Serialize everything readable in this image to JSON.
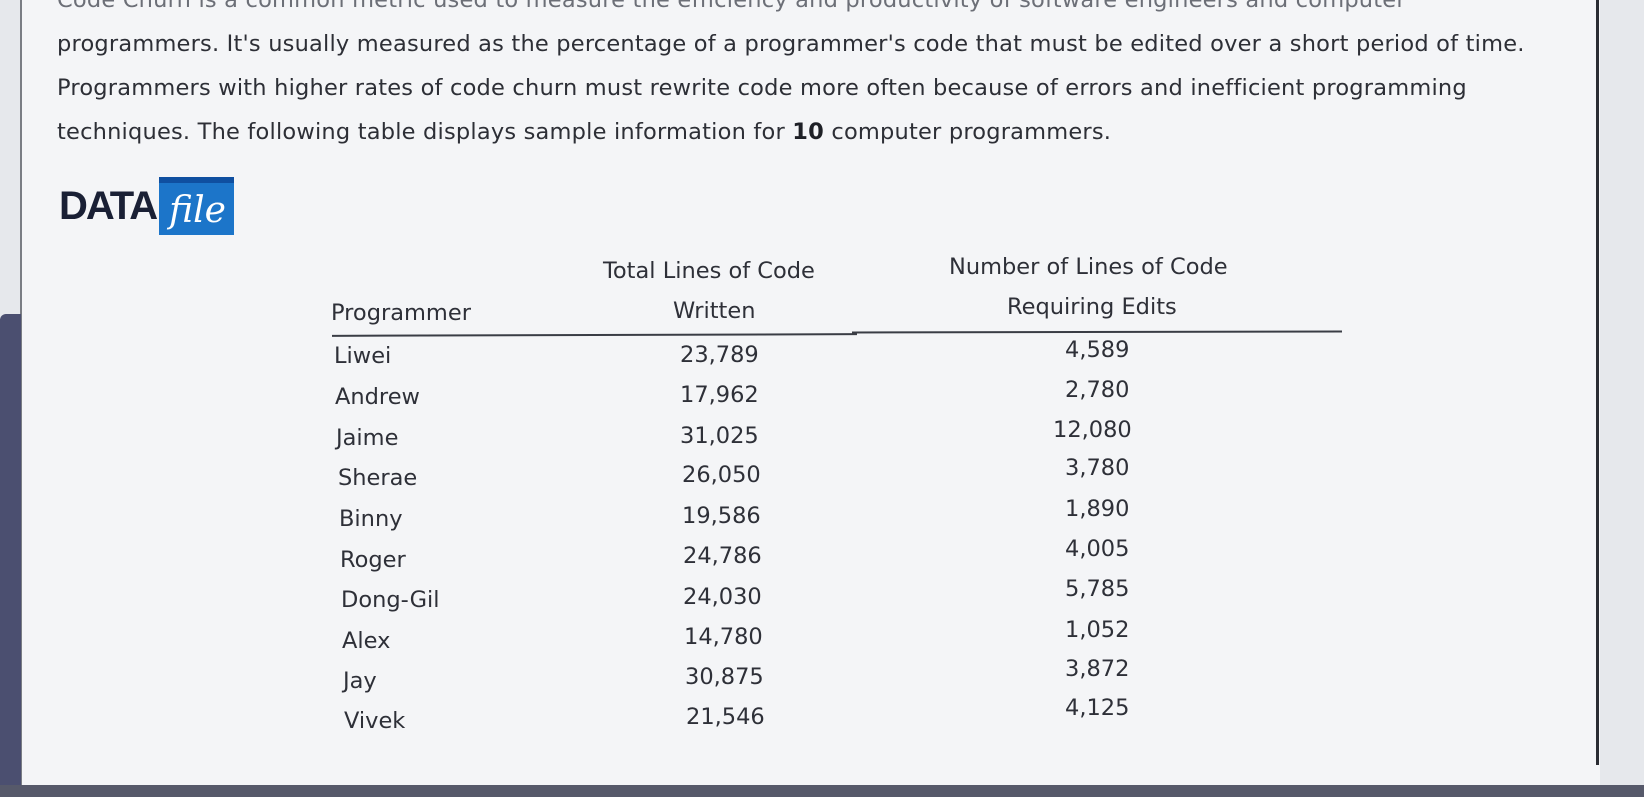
{
  "intro": {
    "line0": "Code Churn is a common metric used to measure the efficiency and productivity of software engineers and computer",
    "line1": "programmers. It's usually measured as the percentage of a programmer's code that must be edited over a short period of time.",
    "line2": "Programmers with higher rates of code churn must rewrite code more often because of errors and inefficient programming",
    "line3_pre": "techniques. The following table displays sample information for ",
    "line3_count": "10",
    "line3_post": " computer programmers."
  },
  "datafile": {
    "data_label": "DATA",
    "file_label": "file"
  },
  "table": {
    "headers": {
      "programmer": "Programmer",
      "total_line1": "Total Lines of Code",
      "total_line2": "Written",
      "edits_line1": "Number of Lines of Code",
      "edits_line2": "Requiring Edits"
    },
    "rows": [
      {
        "name": "Liwei",
        "total": "23,789",
        "edits": "4,589"
      },
      {
        "name": "Andrew",
        "total": "17,962",
        "edits": "2,780"
      },
      {
        "name": "Jaime",
        "total": "31,025",
        "edits": "12,080"
      },
      {
        "name": "Sherae",
        "total": "26,050",
        "edits": "3,780"
      },
      {
        "name": "Binny",
        "total": "19,586",
        "edits": "1,890"
      },
      {
        "name": "Roger",
        "total": "24,786",
        "edits": "4,005"
      },
      {
        "name": "Dong-Gil",
        "total": "24,030",
        "edits": "5,785"
      },
      {
        "name": "Alex",
        "total": "14,780",
        "edits": "1,052"
      },
      {
        "name": "Jay",
        "total": "30,875",
        "edits": "3,872"
      },
      {
        "name": "Vivek",
        "total": "21,546",
        "edits": "4,125"
      }
    ]
  }
}
